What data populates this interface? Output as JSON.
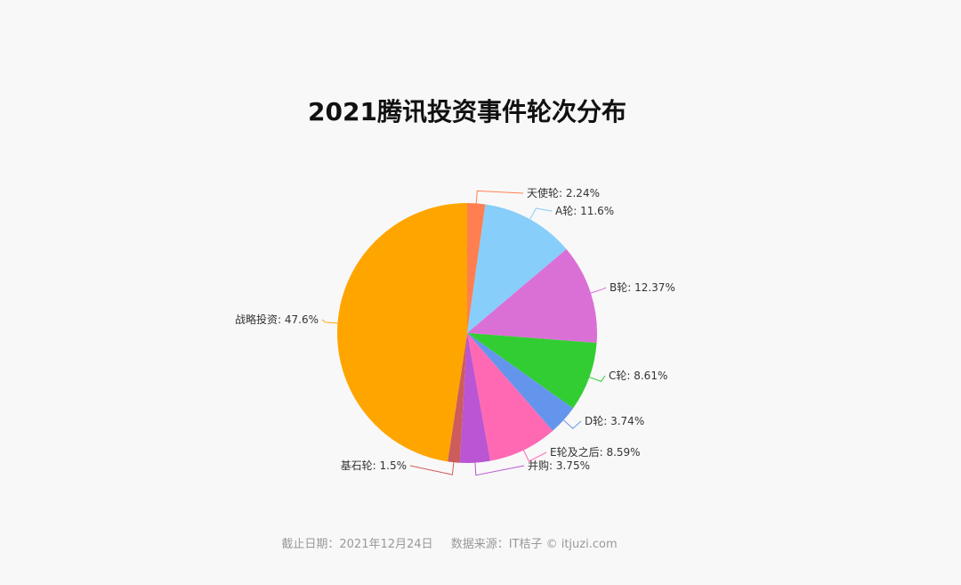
{
  "title": "2021腾讯投资事件轮次分布",
  "footer": {
    "date": "截止日期：2021年12月24日",
    "source": "数据来源：IT桔子 © itjuzi.com"
  },
  "chart_data": {
    "type": "pie",
    "title": "2021腾讯投资事件轮次分布",
    "start_angle": "12 o'clock, clockwise",
    "slices": [
      {
        "label": "天使轮",
        "value": 2.24,
        "display": "天使轮: 2.24%",
        "color": "#ff7f50"
      },
      {
        "label": "A轮",
        "value": 11.6,
        "display": "A轮: 11.6%",
        "color": "#87cefa"
      },
      {
        "label": "B轮",
        "value": 12.37,
        "display": "B轮: 12.37%",
        "color": "#da70d6"
      },
      {
        "label": "C轮",
        "value": 8.61,
        "display": "C轮: 8.61%",
        "color": "#32cd32"
      },
      {
        "label": "D轮",
        "value": 3.74,
        "display": "D轮: 3.74%",
        "color": "#6495ed"
      },
      {
        "label": "E轮及之后",
        "value": 8.59,
        "display": "E轮及之后: 8.59%",
        "color": "#ff69b4"
      },
      {
        "label": "并购",
        "value": 3.75,
        "display": "并购: 3.75%",
        "color": "#ba55d3"
      },
      {
        "label": "基石轮",
        "value": 1.5,
        "display": "基石轮: 1.5%",
        "color": "#cd5c5c"
      },
      {
        "label": "战略投资",
        "value": 47.6,
        "display": "战略投资: 47.6%",
        "color": "#ffa500"
      }
    ]
  }
}
